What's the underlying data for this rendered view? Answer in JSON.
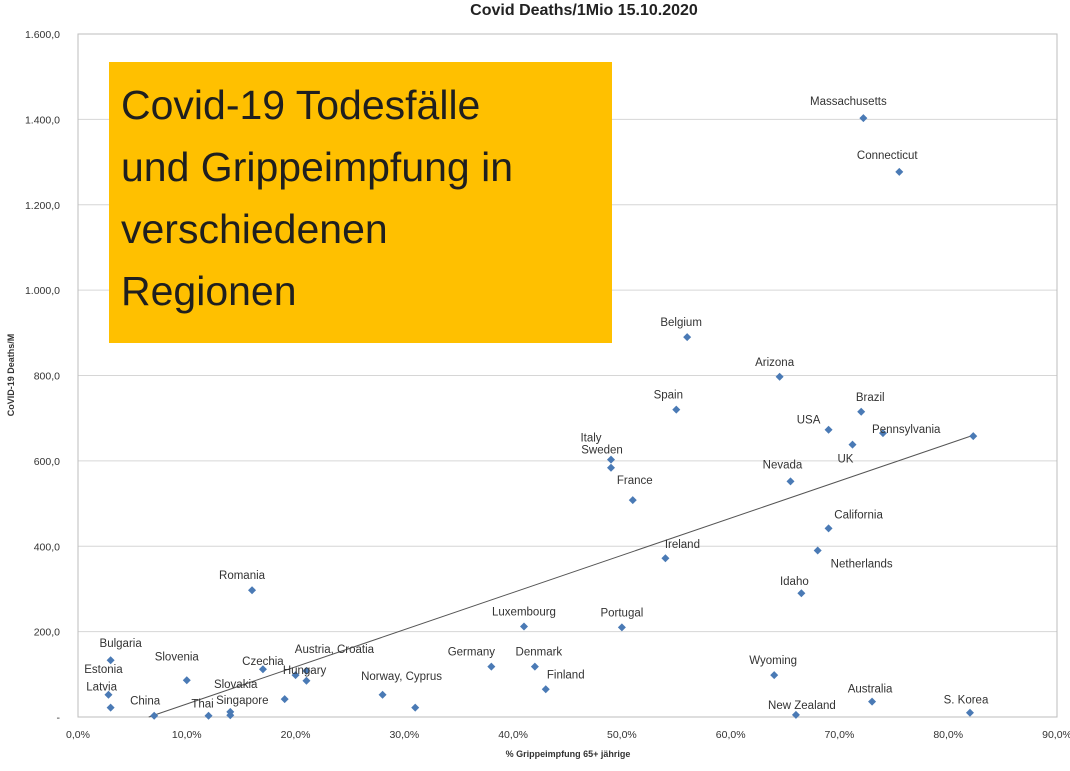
{
  "overlay": {
    "text": "Covid-19 Todesfälle\nund Grippeimpfung in\nverschiedenen\nRegionen",
    "background": "#ffc000"
  },
  "chart_data": {
    "type": "scatter",
    "title": "Covid Deaths/1Mio 15.10.2020",
    "xlabel": "% Grippeimpfung 65+ jährige",
    "ylabel": "CoVID-19  Deaths/M",
    "xlim": [
      0,
      90
    ],
    "ylim": [
      0,
      1600
    ],
    "x_ticks": [
      0,
      10,
      20,
      30,
      40,
      50,
      60,
      70,
      80,
      90
    ],
    "x_tick_labels": [
      "0,0%",
      "10,0%",
      "20,0%",
      "30,0%",
      "40,0%",
      "50,0%",
      "60,0%",
      "70,0%",
      "80,0%",
      "90,0%"
    ],
    "y_ticks": [
      0,
      200,
      400,
      600,
      800,
      1000,
      1200,
      1400,
      1600
    ],
    "y_tick_labels": [
      "-",
      "200,0",
      "400,0",
      "600,0",
      "800,0",
      "1.000,0",
      "1.200,0",
      "1.400,0",
      "1.600,0"
    ],
    "grid": true,
    "marker_color": "#4a7ab5",
    "trendline": {
      "type": "linear",
      "x": [
        6.5,
        82.3
      ],
      "y": [
        0,
        660
      ]
    },
    "points": [
      {
        "label": "Massachusetts",
        "x": 72.2,
        "y": 1403
      },
      {
        "label": "Connecticut",
        "x": 75.5,
        "y": 1277
      },
      {
        "label": "Belgium",
        "x": 56.0,
        "y": 890
      },
      {
        "label": "Arizona",
        "x": 64.5,
        "y": 797
      },
      {
        "label": "Spain",
        "x": 55.0,
        "y": 720
      },
      {
        "label": "Brazil",
        "x": 72.0,
        "y": 715
      },
      {
        "label": "USA",
        "x": 69.0,
        "y": 673
      },
      {
        "label": "Pennsylvania",
        "x": 82.3,
        "y": 658
      },
      {
        "label": "",
        "x": 74.0,
        "y": 665
      },
      {
        "label": "UK",
        "x": 71.2,
        "y": 638
      },
      {
        "label": "Italy",
        "x": 49.0,
        "y": 603
      },
      {
        "label": "Sweden",
        "x": 49.0,
        "y": 584
      },
      {
        "label": "Nevada",
        "x": 65.5,
        "y": 552
      },
      {
        "label": "France",
        "x": 51.0,
        "y": 508
      },
      {
        "label": "California",
        "x": 69.0,
        "y": 442
      },
      {
        "label": "Netherlands",
        "x": 68.0,
        "y": 390
      },
      {
        "label": "Ireland",
        "x": 54.0,
        "y": 372
      },
      {
        "label": "Romania",
        "x": 16.0,
        "y": 297
      },
      {
        "label": "Idaho",
        "x": 66.5,
        "y": 290
      },
      {
        "label": "Luxembourg",
        "x": 41.0,
        "y": 212
      },
      {
        "label": "Portugal",
        "x": 50.0,
        "y": 210
      },
      {
        "label": "Bulgaria",
        "x": 3.0,
        "y": 133
      },
      {
        "label": "Germany",
        "x": 38.0,
        "y": 118
      },
      {
        "label": "Denmark",
        "x": 42.0,
        "y": 118
      },
      {
        "label": "Czechia",
        "x": 17.0,
        "y": 112
      },
      {
        "label": "Austria, Croatia",
        "x": 21.0,
        "y": 108
      },
      {
        "label": "Hungary",
        "x": 20.0,
        "y": 98
      },
      {
        "label": "",
        "x": 21.0,
        "y": 85
      },
      {
        "label": "Wyoming",
        "x": 64.0,
        "y": 98
      },
      {
        "label": "Slovenia",
        "x": 10.0,
        "y": 86
      },
      {
        "label": "Finland",
        "x": 43.0,
        "y": 65
      },
      {
        "label": "Estonia",
        "x": 2.8,
        "y": 52
      },
      {
        "label": "Norway, Cyprus",
        "x": 28.0,
        "y": 52
      },
      {
        "label": "Slovakia",
        "x": 19.0,
        "y": 42
      },
      {
        "label": "Australia",
        "x": 73.0,
        "y": 36
      },
      {
        "label": "Latvia",
        "x": 3.0,
        "y": 22
      },
      {
        "label": "",
        "x": 31.0,
        "y": 22
      },
      {
        "label": "Singapore",
        "x": 14.0,
        "y": 12
      },
      {
        "label": "",
        "x": 14.0,
        "y": 4
      },
      {
        "label": "S. Korea",
        "x": 82.0,
        "y": 10
      },
      {
        "label": "China",
        "x": 7.0,
        "y": 3
      },
      {
        "label": "Thai",
        "x": 12.0,
        "y": 3
      },
      {
        "label": "New Zealand",
        "x": 66.0,
        "y": 5
      }
    ]
  }
}
